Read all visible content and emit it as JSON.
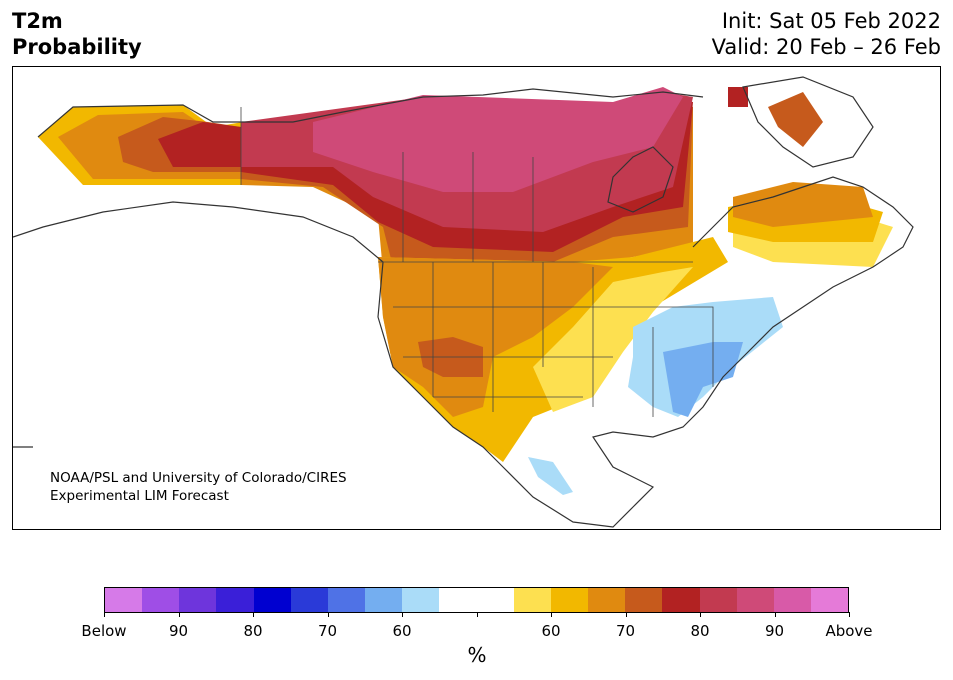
{
  "header": {
    "title_line1": "T2m",
    "title_line2": "Probability",
    "init": "Init: Sat 05 Feb 2022",
    "valid": "Valid: 20 Feb – 26 Feb"
  },
  "map": {
    "credit_line1": "NOAA/PSL and University of Colorado/CIRES",
    "credit_line2": "Experimental LIM Forecast"
  },
  "colorbar": {
    "unit": "%",
    "colors": [
      "#d67ae8",
      "#9f4ee6",
      "#6e35dc",
      "#3a1fd8",
      "#0000d0",
      "#2a3ad8",
      "#4f72e6",
      "#74aef0",
      "#aadcf8",
      "#ffffff",
      "#ffffff",
      "#fde050",
      "#f2b800",
      "#e08a10",
      "#c65a1c",
      "#b22222",
      "#c23a50",
      "#cf4a78",
      "#d85aa8",
      "#e57ad8"
    ],
    "labels": [
      "Below",
      "90",
      "80",
      "70",
      "60",
      "",
      "60",
      "70",
      "80",
      "90",
      "Above"
    ]
  },
  "legend_colors": {
    "below_60": "#aadcf8",
    "below_70": "#74aef0",
    "above_60": "#fde050",
    "above_65": "#f2b800",
    "above_70": "#e08a10",
    "above_75": "#c65a1c",
    "above_80": "#b22222",
    "above_85": "#c23a50",
    "above_90": "#cf4a78"
  }
}
